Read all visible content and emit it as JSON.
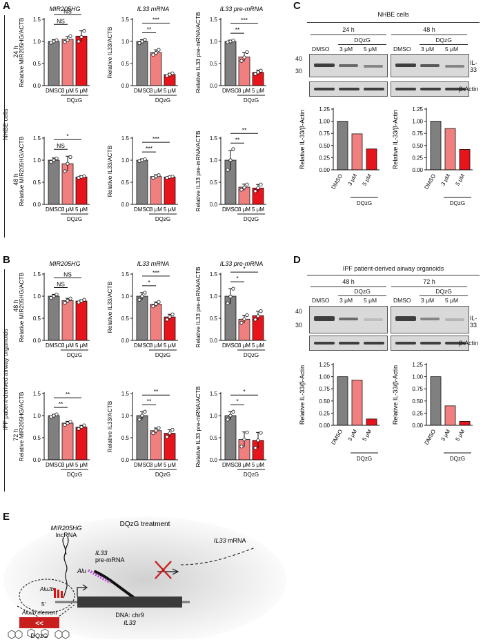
{
  "panels": {
    "A": "A",
    "B": "B",
    "C": "C",
    "D": "D",
    "E": "E"
  },
  "colors": {
    "dmso": "#808080",
    "dose3": "#f08080",
    "dose5": "#e8141c"
  },
  "row_labels": {
    "nhbe": "NHBE cells",
    "ipf": "IPF patient-derived airway organoids",
    "t24": "24 h",
    "t48": "48 h",
    "t72": "72 h"
  },
  "chart_data": [
    {
      "type": "bar",
      "panel": "A",
      "title": "MIR205HG",
      "ylabel": "Relative MIR205HG/ACTB",
      "ylim": [
        0,
        1.5
      ],
      "yticks": [
        "0.0",
        "0.5",
        "1.0",
        "1.5"
      ],
      "categories": [
        "DMSO",
        "3 μM",
        "5 μM"
      ],
      "group_label": "DQzG",
      "values": [
        1.0,
        1.05,
        1.12
      ],
      "errors": [
        0.04,
        0.06,
        0.12
      ],
      "points": [
        [
          0.97,
          1.0,
          1.03
        ],
        [
          0.99,
          1.03,
          1.12
        ],
        [
          1.0,
          1.1,
          1.24
        ]
      ],
      "brackets": [
        {
          "from": 0,
          "to": 1,
          "label": "NS"
        },
        {
          "from": 0,
          "to": 2,
          "label": "NS"
        }
      ]
    },
    {
      "type": "bar",
      "panel": "A",
      "title": "IL33 mRNA",
      "ylabel": "Relative IL33/ACTB",
      "ylim": [
        0,
        1.5
      ],
      "yticks": [
        "0.0",
        "0.5",
        "1.0",
        "1.5"
      ],
      "categories": [
        "DMSO",
        "3 μM",
        "5 μM"
      ],
      "group_label": "DQzG",
      "values": [
        1.0,
        0.75,
        0.25
      ],
      "errors": [
        0.04,
        0.06,
        0.03
      ],
      "points": [
        [
          0.96,
          1.0,
          1.04
        ],
        [
          0.7,
          0.74,
          0.81
        ],
        [
          0.22,
          0.25,
          0.28
        ]
      ],
      "brackets": [
        {
          "from": 0,
          "to": 1,
          "label": "**"
        },
        {
          "from": 0,
          "to": 2,
          "label": "***"
        }
      ]
    },
    {
      "type": "bar",
      "panel": "A",
      "title": "IL33 pre-mRNA",
      "ylabel": "Relative IL33 pre-mRNA/ACTB",
      "ylim": [
        0,
        1.5
      ],
      "yticks": [
        "0.0",
        "0.5",
        "1.0",
        "1.5"
      ],
      "categories": [
        "DMSO",
        "3 μM",
        "5 μM"
      ],
      "group_label": "DQzG",
      "values": [
        1.0,
        0.65,
        0.3
      ],
      "errors": [
        0.03,
        0.1,
        0.05
      ],
      "points": [
        [
          0.98,
          1.0,
          1.02
        ],
        [
          0.56,
          0.64,
          0.76
        ],
        [
          0.26,
          0.3,
          0.34
        ]
      ],
      "brackets": [
        {
          "from": 0,
          "to": 1,
          "label": "**"
        },
        {
          "from": 0,
          "to": 2,
          "label": "***"
        }
      ]
    },
    {
      "type": "bar",
      "panel": "A",
      "title": "",
      "ylabel": "Relative MIR205HG/ACTB",
      "ylim": [
        0,
        1.5
      ],
      "yticks": [
        "0.0",
        "0.5",
        "1.0",
        "1.5"
      ],
      "categories": [
        "DMSO",
        "3 μM",
        "5 μM"
      ],
      "group_label": "DQzG",
      "values": [
        1.0,
        0.92,
        0.62
      ],
      "errors": [
        0.05,
        0.17,
        0.03
      ],
      "points": [
        [
          0.96,
          1.0,
          1.04
        ],
        [
          0.75,
          0.92,
          1.07
        ],
        [
          0.6,
          0.62,
          0.64
        ]
      ],
      "brackets": [
        {
          "from": 0,
          "to": 1,
          "label": "NS"
        },
        {
          "from": 0,
          "to": 2,
          "label": "*"
        }
      ]
    },
    {
      "type": "bar",
      "panel": "A",
      "title": "",
      "ylabel": "Relative IL33/ACTB",
      "ylim": [
        0,
        1.5
      ],
      "yticks": [
        "0.0",
        "0.5",
        "1.0",
        "1.5"
      ],
      "categories": [
        "DMSO",
        "3 μM",
        "5 μM"
      ],
      "group_label": "DQzG",
      "values": [
        1.0,
        0.63,
        0.62
      ],
      "errors": [
        0.03,
        0.04,
        0.02
      ],
      "points": [
        [
          0.98,
          1.0,
          1.02
        ],
        [
          0.6,
          0.63,
          0.66
        ],
        [
          0.6,
          0.62,
          0.63
        ]
      ],
      "brackets": [
        {
          "from": 0,
          "to": 1,
          "label": "***"
        },
        {
          "from": 0,
          "to": 2,
          "label": "***"
        }
      ]
    },
    {
      "type": "bar",
      "panel": "A",
      "title": "",
      "ylabel": "Relative IL33 pre-mRNA/ACTB",
      "ylim": [
        0,
        1.5
      ],
      "yticks": [
        "0.0",
        "0.5",
        "1.0",
        "1.5"
      ],
      "categories": [
        "DMSO",
        "3 μM",
        "5 μM"
      ],
      "group_label": "DQzG",
      "values": [
        1.0,
        0.39,
        0.37
      ],
      "errors": [
        0.22,
        0.07,
        0.08
      ],
      "points": [
        [
          0.78,
          1.0,
          1.25
        ],
        [
          0.33,
          0.38,
          0.45
        ],
        [
          0.3,
          0.37,
          0.45
        ]
      ],
      "brackets": [
        {
          "from": 0,
          "to": 1,
          "label": "**"
        },
        {
          "from": 0,
          "to": 2,
          "label": "**"
        }
      ]
    },
    {
      "type": "bar",
      "panel": "B",
      "title": "MIR205HG",
      "ylabel": "Relative MIR205HG/ACTB",
      "ylim": [
        0,
        1.5
      ],
      "yticks": [
        "0.0",
        "0.5",
        "1.0",
        "1.5"
      ],
      "categories": [
        "DMSO",
        "3 μM",
        "5 μM"
      ],
      "group_label": "DQzG",
      "values": [
        1.0,
        0.9,
        0.89
      ],
      "errors": [
        0.04,
        0.05,
        0.03
      ],
      "points": [
        [
          0.96,
          1.0,
          1.04
        ],
        [
          0.85,
          0.9,
          0.95
        ],
        [
          0.86,
          0.89,
          0.92
        ]
      ],
      "brackets": [
        {
          "from": 0,
          "to": 1,
          "label": "NS"
        },
        {
          "from": 0,
          "to": 2,
          "label": "NS"
        }
      ]
    },
    {
      "type": "bar",
      "panel": "B",
      "title": "IL33 mRNA",
      "ylabel": "Relative IL33/ACTB",
      "ylim": [
        0,
        1.5
      ],
      "yticks": [
        "0.0",
        "0.5",
        "1.0",
        "1.5"
      ],
      "categories": [
        "DMSO",
        "3 μM",
        "5 μM"
      ],
      "group_label": "DQzG",
      "values": [
        1.0,
        0.82,
        0.53
      ],
      "errors": [
        0.08,
        0.05,
        0.06
      ],
      "points": [
        [
          0.92,
          1.0,
          1.08
        ],
        [
          0.77,
          0.82,
          0.87
        ],
        [
          0.47,
          0.53,
          0.59
        ]
      ],
      "brackets": [
        {
          "from": 0,
          "to": 1,
          "label": "*"
        },
        {
          "from": 0,
          "to": 2,
          "label": "***"
        }
      ]
    },
    {
      "type": "bar",
      "panel": "B",
      "title": "IL33 pre-mRNA",
      "ylabel": "Relative IL33 pre-mRNA/ACTB",
      "ylim": [
        0,
        1.5
      ],
      "yticks": [
        "0.0",
        "0.5",
        "1.0",
        "1.5"
      ],
      "categories": [
        "DMSO",
        "3 μM",
        "5 μM"
      ],
      "group_label": "DQzG",
      "values": [
        1.0,
        0.48,
        0.56
      ],
      "errors": [
        0.17,
        0.09,
        0.1
      ],
      "points": [
        [
          0.84,
          0.99,
          1.17
        ],
        [
          0.4,
          0.48,
          0.57
        ],
        [
          0.47,
          0.55,
          0.66
        ]
      ],
      "brackets": [
        {
          "from": 0,
          "to": 1,
          "label": "*"
        },
        {
          "from": 0,
          "to": 2,
          "label": "*"
        }
      ]
    },
    {
      "type": "bar",
      "panel": "B",
      "title": "",
      "ylabel": "Relative MIR205HG/ACTB",
      "ylim": [
        0,
        1.5
      ],
      "yticks": [
        "0.0",
        "0.5",
        "1.0",
        "1.5"
      ],
      "categories": [
        "DMSO",
        "3 μM",
        "5 μM"
      ],
      "group_label": "DQzG",
      "values": [
        1.0,
        0.83,
        0.74
      ],
      "errors": [
        0.03,
        0.04,
        0.04
      ],
      "points": [
        [
          0.97,
          1.0,
          1.03
        ],
        [
          0.79,
          0.83,
          0.86
        ],
        [
          0.7,
          0.74,
          0.78
        ]
      ],
      "brackets": [
        {
          "from": 0,
          "to": 1,
          "label": "**"
        },
        {
          "from": 0,
          "to": 2,
          "label": "**"
        }
      ]
    },
    {
      "type": "bar",
      "panel": "B",
      "title": "",
      "ylabel": "Relative IL33/ACTB",
      "ylim": [
        0,
        1.5
      ],
      "yticks": [
        "0.0",
        "0.5",
        "1.0",
        "1.5"
      ],
      "categories": [
        "DMSO",
        "3 μM",
        "5 μM"
      ],
      "group_label": "DQzG",
      "values": [
        1.0,
        0.66,
        0.6
      ],
      "errors": [
        0.09,
        0.06,
        0.08
      ],
      "points": [
        [
          0.91,
          1.0,
          1.09
        ],
        [
          0.6,
          0.66,
          0.72
        ],
        [
          0.52,
          0.6,
          0.68
        ]
      ],
      "brackets": [
        {
          "from": 0,
          "to": 1,
          "label": "**"
        },
        {
          "from": 0,
          "to": 2,
          "label": "**"
        }
      ]
    },
    {
      "type": "bar",
      "panel": "B",
      "title": "",
      "ylabel": "Relative IL33 pre-mRNA/ACTB",
      "ylim": [
        0,
        1.5
      ],
      "yticks": [
        "0.0",
        "0.5",
        "1.0",
        "1.5"
      ],
      "categories": [
        "DMSO",
        "3 μM",
        "5 μM"
      ],
      "group_label": "DQzG",
      "values": [
        1.0,
        0.46,
        0.44
      ],
      "errors": [
        0.09,
        0.17,
        0.18
      ],
      "points": [
        [
          0.91,
          1.0,
          1.09
        ],
        [
          0.3,
          0.46,
          0.62
        ],
        [
          0.27,
          0.44,
          0.61
        ]
      ],
      "brackets": [
        {
          "from": 0,
          "to": 1,
          "label": "*"
        },
        {
          "from": 0,
          "to": 2,
          "label": "*"
        }
      ]
    },
    {
      "type": "bar",
      "panel": "C",
      "title": "",
      "ylabel": "Relative IL-33/β-Actin",
      "ylim": [
        0,
        1.25
      ],
      "yticks": [
        "0.00",
        "0.25",
        "0.50",
        "0.75",
        "1.00",
        "1.25"
      ],
      "categories": [
        "DMSO",
        "3 μM",
        "5 μM"
      ],
      "group_label": "DQzG",
      "values": [
        1.0,
        0.74,
        0.43
      ]
    },
    {
      "type": "bar",
      "panel": "C",
      "title": "",
      "ylabel": "Relative IL-33/β-Actin",
      "ylim": [
        0,
        1.25
      ],
      "yticks": [
        "0.00",
        "0.25",
        "0.50",
        "0.75",
        "1.00",
        "1.25"
      ],
      "categories": [
        "DMSO",
        "3 μM",
        "5 μM"
      ],
      "group_label": "DQzG",
      "values": [
        1.0,
        0.85,
        0.42
      ]
    },
    {
      "type": "bar",
      "panel": "D",
      "title": "",
      "ylabel": "Relative IL-33/β-Actin",
      "ylim": [
        0,
        1.25
      ],
      "yticks": [
        "0.00",
        "0.25",
        "0.50",
        "0.75",
        "1.00",
        "1.25"
      ],
      "categories": [
        "DMSO",
        "3 μM",
        "5 μM"
      ],
      "group_label": "DQzG",
      "values": [
        1.0,
        0.93,
        0.13
      ]
    },
    {
      "type": "bar",
      "panel": "D",
      "title": "",
      "ylabel": "Relative IL-33/β-Actin",
      "ylim": [
        0,
        1.25
      ],
      "yticks": [
        "0.00",
        "0.25",
        "0.50",
        "0.75",
        "1.00",
        "1.25"
      ],
      "categories": [
        "DMSO",
        "3 μM",
        "5 μM"
      ],
      "group_label": "DQzG",
      "values": [
        1.0,
        0.4,
        0.08
      ]
    }
  ],
  "blots": {
    "c_title": "NHBE cells",
    "c_time1": "24 h",
    "c_time2": "48 h",
    "d_title": "IPF patient-derived airway organoids",
    "d_time1": "48 h",
    "d_time2": "72 h",
    "group": "DQzG",
    "s1": "DMSO",
    "s2": "3 μM",
    "s3": "5 μM",
    "il33": "IL-33",
    "actin": "β-Actin",
    "mw40": "40",
    "mw30": "30"
  },
  "diagram": {
    "title": "DQzG treatment",
    "lncrna_name": "MIR205HG",
    "lncrna_type": "lncRNA",
    "premrna_gene": "IL33",
    "premrna_type": "pre-mRNA",
    "mrna_gene": "IL33",
    "mrna_type": "mRNA",
    "alu": "Alu",
    "alujb": "AluJb",
    "alujb_element": "AluJb element",
    "dna": "DNA: chr9",
    "dna_gene": "IL33",
    "drug": "DQzG",
    "five_prime": "5'",
    "three_prime": "3'"
  }
}
